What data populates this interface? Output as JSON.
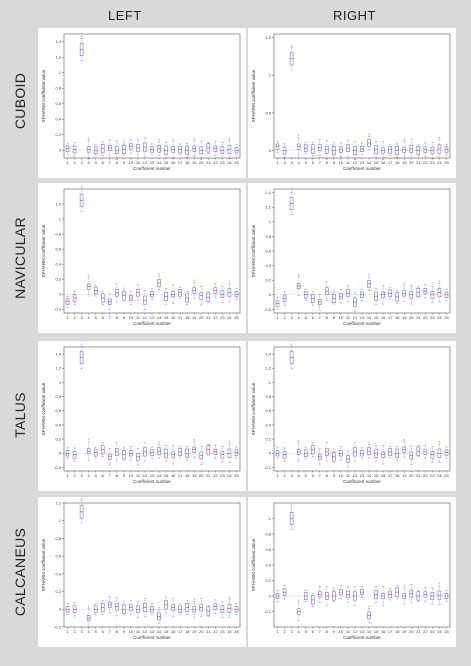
{
  "columns": [
    "LEFT",
    "RIGHT"
  ],
  "rows": [
    "CUBOID",
    "NAVICULAR",
    "TALUS",
    "CALCANEUS"
  ],
  "chart_data": [
    {
      "type": "box",
      "bone": "CUBOID",
      "side": "LEFT",
      "xlabel": "Coefficient number",
      "ylabel": "SPHARM coefficient value",
      "ylim": [
        -0.1,
        1.5
      ],
      "yticks": [
        0,
        0.2,
        0.4,
        0.6,
        0.8,
        1,
        1.2,
        1.4
      ],
      "x": [
        1,
        2,
        3,
        4,
        5,
        6,
        7,
        8,
        9,
        10,
        11,
        12,
        13,
        14,
        15,
        16,
        17,
        18,
        19,
        20,
        21,
        22,
        23,
        24,
        25
      ],
      "values": [
        0.02,
        0.01,
        1.3,
        0.01,
        0.0,
        0.02,
        0.03,
        0.0,
        0.01,
        0.05,
        0.03,
        0.04,
        0.01,
        0.02,
        0.0,
        0.01,
        0.01,
        0.0,
        0.02,
        0.0,
        0.03,
        0.02,
        0.0,
        0.01,
        0.0
      ]
    },
    {
      "type": "box",
      "bone": "CUBOID",
      "side": "RIGHT",
      "xlabel": "Coefficient number",
      "ylabel": "SPHARM coefficient value",
      "ylim": [
        -0.1,
        1.55
      ],
      "yticks": [
        0,
        0.5,
        1,
        1.5
      ],
      "x": [
        1,
        2,
        3,
        4,
        5,
        6,
        7,
        8,
        9,
        10,
        11,
        12,
        13,
        14,
        15,
        16,
        17,
        18,
        19,
        20,
        21,
        22,
        23,
        24,
        25
      ],
      "values": [
        0.05,
        0.0,
        1.22,
        0.05,
        0.03,
        0.02,
        0.04,
        0.01,
        0.0,
        0.01,
        0.03,
        0.0,
        0.02,
        0.1,
        0.01,
        0.0,
        0.01,
        0.0,
        0.01,
        0.02,
        0.0,
        0.01,
        0.0,
        0.02,
        0.01
      ]
    },
    {
      "type": "box",
      "bone": "NAVICULAR",
      "side": "LEFT",
      "xlabel": "Coefficient number",
      "ylabel": "SPHARM coefficient value",
      "ylim": [
        -0.25,
        1.4
      ],
      "yticks": [
        -0.2,
        0,
        0.2,
        0.4,
        0.6,
        0.8,
        1,
        1.2
      ],
      "x": [
        1,
        2,
        3,
        4,
        5,
        6,
        7,
        8,
        9,
        10,
        11,
        12,
        13,
        14,
        15,
        16,
        17,
        18,
        19,
        20,
        21,
        22,
        23,
        24,
        25
      ],
      "values": [
        -0.1,
        -0.05,
        1.25,
        0.1,
        0.05,
        -0.05,
        -0.1,
        0.02,
        -0.02,
        -0.05,
        0.02,
        -0.08,
        0.0,
        0.15,
        -0.03,
        0.0,
        0.02,
        -0.05,
        0.05,
        -0.02,
        -0.04,
        0.05,
        0.0,
        0.02,
        0.0
      ]
    },
    {
      "type": "box",
      "bone": "NAVICULAR",
      "side": "RIGHT",
      "xlabel": "Coefficient number",
      "ylabel": "SPHARM coefficient value",
      "ylim": [
        -0.25,
        1.45
      ],
      "yticks": [
        -0.2,
        0,
        0.2,
        0.4,
        0.6,
        0.8,
        1,
        1.2,
        1.4
      ],
      "x": [
        1,
        2,
        3,
        4,
        5,
        6,
        7,
        8,
        9,
        10,
        11,
        12,
        13,
        14,
        15,
        16,
        17,
        18,
        19,
        20,
        21,
        22,
        23,
        24,
        25
      ],
      "values": [
        -0.12,
        -0.05,
        1.25,
        0.12,
        0.0,
        -0.05,
        -0.1,
        0.05,
        -0.05,
        -0.02,
        0.02,
        -0.1,
        0.0,
        0.15,
        -0.02,
        0.0,
        0.02,
        -0.03,
        0.02,
        0.0,
        0.03,
        0.05,
        0.0,
        0.03,
        0.0
      ]
    },
    {
      "type": "box",
      "bone": "TALUS",
      "side": "LEFT",
      "xlabel": "Coefficient number",
      "ylabel": "SPHARM coefficient value",
      "ylim": [
        -0.25,
        1.5
      ],
      "yticks": [
        -0.2,
        0,
        0.2,
        0.4,
        0.6,
        0.8,
        1,
        1.2,
        1.4
      ],
      "x": [
        1,
        2,
        3,
        4,
        5,
        6,
        7,
        8,
        9,
        10,
        11,
        12,
        13,
        14,
        15,
        16,
        17,
        18,
        19,
        20,
        21,
        22,
        23,
        24,
        25
      ],
      "values": [
        0.0,
        -0.02,
        1.35,
        0.03,
        0.01,
        0.05,
        -0.05,
        0.02,
        -0.02,
        0.0,
        -0.05,
        0.02,
        0.01,
        0.03,
        0.0,
        -0.02,
        0.02,
        0.0,
        0.05,
        -0.03,
        0.05,
        0.02,
        -0.02,
        0.0,
        0.01
      ]
    },
    {
      "type": "box",
      "bone": "TALUS",
      "side": "RIGHT",
      "xlabel": "Coefficient number",
      "ylabel": "SPHARM coefficient value",
      "ylim": [
        -0.25,
        1.5
      ],
      "yticks": [
        -0.2,
        0,
        0.2,
        0.4,
        0.6,
        0.8,
        1,
        1.2,
        1.4
      ],
      "x": [
        1,
        2,
        3,
        4,
        5,
        6,
        7,
        8,
        9,
        10,
        11,
        12,
        13,
        14,
        15,
        16,
        17,
        18,
        19,
        20,
        21,
        22,
        23,
        24,
        25
      ],
      "values": [
        0.0,
        -0.02,
        1.35,
        0.02,
        0.0,
        0.05,
        -0.05,
        0.02,
        -0.05,
        0.0,
        -0.08,
        0.02,
        0.0,
        0.03,
        0.0,
        -0.02,
        0.02,
        0.0,
        0.05,
        -0.03,
        0.03,
        0.02,
        -0.02,
        0.0,
        0.01
      ]
    },
    {
      "type": "box",
      "bone": "CALCANEUS",
      "side": "LEFT",
      "xlabel": "Coefficient number",
      "ylabel": "SPHARM coefficient value",
      "ylim": [
        -0.2,
        1.2
      ],
      "yticks": [
        -0.2,
        0,
        0.2,
        0.4,
        0.6,
        0.8,
        1,
        1.2
      ],
      "x": [
        1,
        2,
        3,
        4,
        5,
        6,
        7,
        8,
        9,
        10,
        11,
        12,
        13,
        14,
        15,
        16,
        17,
        18,
        19,
        20,
        21,
        22,
        23,
        24,
        25
      ],
      "values": [
        0.0,
        0.0,
        1.1,
        -0.1,
        0.0,
        0.02,
        0.05,
        0.03,
        0.0,
        0.02,
        0.0,
        0.02,
        0.0,
        -0.08,
        0.05,
        0.02,
        0.0,
        0.02,
        0.0,
        0.02,
        -0.02,
        0.03,
        0.0,
        0.01,
        0.0
      ]
    },
    {
      "type": "box",
      "bone": "CALCANEUS",
      "side": "RIGHT",
      "xlabel": "Coefficient number",
      "ylabel": "SPHARM coefficient value",
      "ylim": [
        -0.4,
        1.2
      ],
      "yticks": [
        -0.2,
        0,
        0.2,
        0.4,
        0.6,
        0.8,
        1
      ],
      "x": [
        1,
        2,
        3,
        4,
        5,
        6,
        7,
        8,
        9,
        10,
        11,
        12,
        13,
        14,
        15,
        16,
        17,
        18,
        19,
        20,
        21,
        22,
        23,
        24,
        25
      ],
      "values": [
        0.0,
        0.05,
        1.0,
        -0.2,
        0.0,
        -0.05,
        0.02,
        0.0,
        0.0,
        0.05,
        0.02,
        0.0,
        0.05,
        -0.25,
        0.02,
        0.0,
        0.02,
        0.05,
        0.0,
        0.03,
        0.0,
        0.02,
        0.0,
        0.01,
        0.0
      ]
    }
  ],
  "colors": {
    "box": "#6a6ad0",
    "whisker": "#7a7ad8",
    "median": "#d03030",
    "outlier": "#d03030",
    "axis": "#555555"
  }
}
